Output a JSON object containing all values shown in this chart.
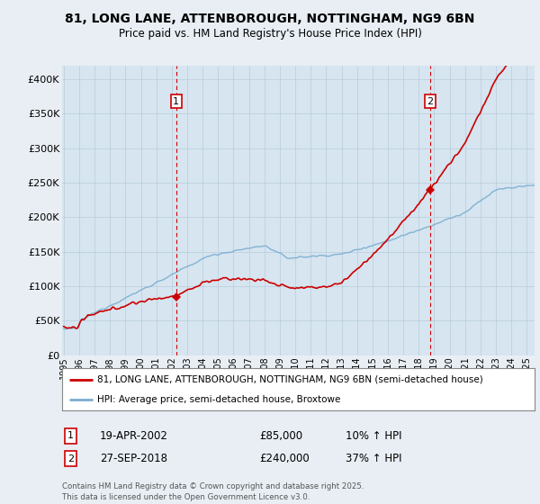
{
  "title_line1": "81, LONG LANE, ATTENBOROUGH, NOTTINGHAM, NG9 6BN",
  "title_line2": "Price paid vs. HM Land Registry's House Price Index (HPI)",
  "ylabel_ticks": [
    "£0",
    "£50K",
    "£100K",
    "£150K",
    "£200K",
    "£250K",
    "£300K",
    "£350K",
    "£400K"
  ],
  "ytick_values": [
    0,
    50000,
    100000,
    150000,
    200000,
    250000,
    300000,
    350000,
    400000
  ],
  "ylim": [
    0,
    420000
  ],
  "xlim_start": 1995,
  "xlim_end": 2025.5,
  "xticks": [
    1995,
    1996,
    1997,
    1998,
    1999,
    2000,
    2001,
    2002,
    2003,
    2004,
    2005,
    2006,
    2007,
    2008,
    2009,
    2010,
    2011,
    2012,
    2013,
    2014,
    2015,
    2016,
    2017,
    2018,
    2019,
    2020,
    2021,
    2022,
    2023,
    2024,
    2025
  ],
  "transaction1_x": 2002.29,
  "transaction1_y": 85000,
  "transaction1_label": "1",
  "transaction2_x": 2018.74,
  "transaction2_y": 240000,
  "transaction2_label": "2",
  "vline1_x": 2002.29,
  "vline2_x": 2018.74,
  "red_line_color": "#cc0000",
  "blue_line_color": "#7aadcf",
  "vline_color": "#cc0000",
  "background_color": "#e8eef4",
  "plot_bg_color": "#d6e5f0",
  "grid_color": "#b8ccdb",
  "legend_line1": "81, LONG LANE, ATTENBOROUGH, NOTTINGHAM, NG9 6BN (semi-detached house)",
  "legend_line2": "HPI: Average price, semi-detached house, Broxtowe",
  "note1_label": "1",
  "note1_date": "19-APR-2002",
  "note1_price": "£85,000",
  "note1_hpi": "10% ↑ HPI",
  "note2_label": "2",
  "note2_date": "27-SEP-2018",
  "note2_price": "£240,000",
  "note2_hpi": "37% ↑ HPI",
  "footer": "Contains HM Land Registry data © Crown copyright and database right 2025.\nThis data is licensed under the Open Government Licence v3.0."
}
